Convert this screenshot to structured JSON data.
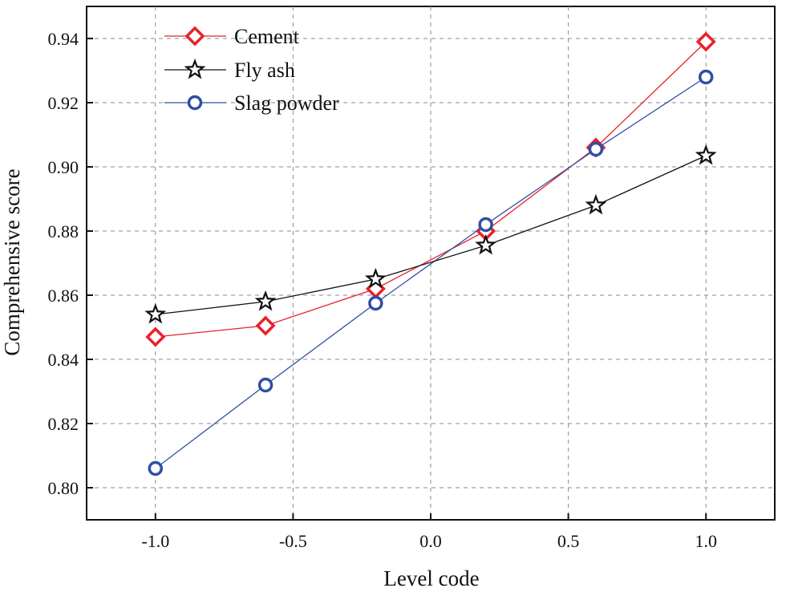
{
  "chart_data": {
    "type": "line",
    "title": "",
    "xlabel": "Level code",
    "ylabel": "Comprehensive score",
    "xlim": [
      -1.25,
      1.25
    ],
    "ylim": [
      0.79,
      0.95
    ],
    "x_ticks": [
      -1.0,
      -0.5,
      0.0,
      0.5,
      1.0
    ],
    "x_tick_labels": [
      "-1.0",
      "-0.5",
      "0.0",
      "0.5",
      "1.0"
    ],
    "y_ticks": [
      0.8,
      0.82,
      0.84,
      0.86,
      0.88,
      0.9,
      0.92,
      0.94
    ],
    "y_tick_labels": [
      "0.80",
      "0.82",
      "0.84",
      "0.86",
      "0.88",
      "0.90",
      "0.92",
      "0.94"
    ],
    "grid": true,
    "legend_position": "top-left",
    "x": [
      -1.0,
      -0.6,
      -0.2,
      0.2,
      0.6,
      1.0
    ],
    "series": [
      {
        "name": "Cement",
        "values": [
          0.847,
          0.8505,
          0.862,
          0.88,
          0.906,
          0.939
        ],
        "color": "#e8212a",
        "marker": "diamond"
      },
      {
        "name": "Fly ash",
        "values": [
          0.854,
          0.858,
          0.865,
          0.8755,
          0.888,
          0.9035
        ],
        "color": "#111111",
        "marker": "star"
      },
      {
        "name": "Slag powder",
        "values": [
          0.806,
          0.832,
          0.8575,
          0.882,
          0.9055,
          0.928
        ],
        "color": "#2e4fa3",
        "marker": "circle"
      }
    ]
  }
}
